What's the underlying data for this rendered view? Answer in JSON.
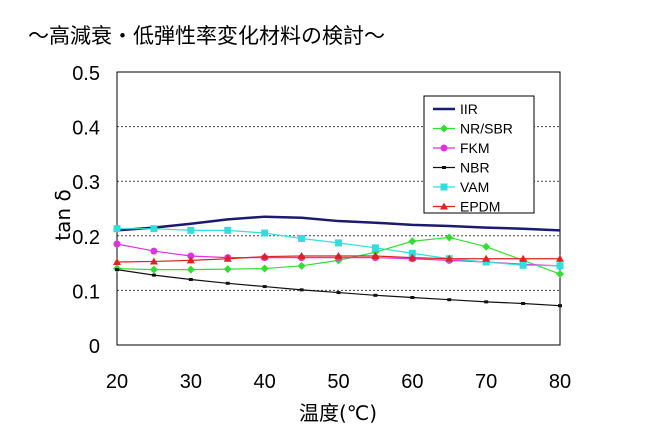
{
  "title": "～高減衰・低弾性率変化材料の検討～",
  "chart_data": {
    "type": "line",
    "title": "～高減衰・低弾性率変化材料の検討～",
    "xlabel": "温度(℃)",
    "ylabel": "tan δ",
    "xlim": [
      20,
      80
    ],
    "ylim": [
      0,
      0.5
    ],
    "xticks": [
      "20",
      "30",
      "40",
      "50",
      "60",
      "70",
      "80"
    ],
    "yticks": [
      "0",
      "0.1",
      "0.2",
      "0.3",
      "0.4",
      "0.5"
    ],
    "grid": "horizontal dotted",
    "legend": "top-right",
    "x": [
      20,
      25,
      30,
      35,
      40,
      45,
      50,
      55,
      60,
      65,
      70,
      75,
      80
    ],
    "series": [
      {
        "name": "IIR",
        "color": "#1a1a6e",
        "marker": "none",
        "values": [
          0.21,
          0.215,
          0.222,
          0.23,
          0.235,
          0.233,
          0.227,
          0.224,
          0.22,
          0.218,
          0.215,
          0.213,
          0.21
        ]
      },
      {
        "name": "NR/SBR",
        "color": "#33dd33",
        "marker": "diamond",
        "values": [
          0.14,
          0.138,
          0.138,
          0.139,
          0.14,
          0.145,
          0.155,
          0.17,
          0.19,
          0.197,
          0.18,
          0.155,
          0.13
        ]
      },
      {
        "name": "FKM",
        "color": "#dd33dd",
        "marker": "circle",
        "values": [
          0.185,
          0.172,
          0.163,
          0.16,
          0.16,
          0.16,
          0.16,
          0.16,
          0.158,
          0.155,
          0.152,
          0.148,
          0.145
        ]
      },
      {
        "name": "NBR",
        "color": "#111111",
        "marker": "dash",
        "values": [
          0.138,
          0.128,
          0.12,
          0.113,
          0.107,
          0.101,
          0.096,
          0.091,
          0.087,
          0.083,
          0.079,
          0.076,
          0.072
        ]
      },
      {
        "name": "VAM",
        "color": "#33dddd",
        "marker": "square",
        "values": [
          0.213,
          0.213,
          0.21,
          0.21,
          0.205,
          0.195,
          0.187,
          0.178,
          0.168,
          0.158,
          0.152,
          0.146,
          0.145
        ]
      },
      {
        "name": "EPDM",
        "color": "#dd2222",
        "marker": "triangle",
        "values": [
          0.152,
          0.153,
          0.155,
          0.158,
          0.162,
          0.163,
          0.163,
          0.163,
          0.16,
          0.158,
          0.158,
          0.158,
          0.158
        ]
      }
    ]
  }
}
